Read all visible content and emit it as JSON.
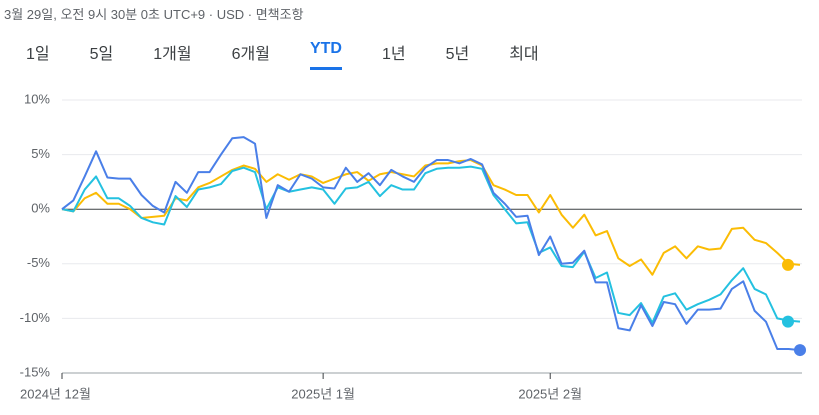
{
  "header": {
    "timestamp": "3월 29일, 오전 9시 30분 0초 UTC+9 · USD · 면책조항",
    "tabs": [
      "1일",
      "5일",
      "1개월",
      "6개월",
      "YTD",
      "1년",
      "5년",
      "최대"
    ],
    "selected_tab": 4
  },
  "chart_data": {
    "type": "line",
    "categories": [
      "2024년 12월",
      null,
      null,
      null,
      null,
      null,
      null,
      null,
      null,
      null,
      null,
      null,
      null,
      null,
      null,
      null,
      null,
      null,
      null,
      null,
      null,
      null,
      null,
      "2025년 1월",
      null,
      null,
      null,
      null,
      null,
      null,
      null,
      null,
      null,
      null,
      null,
      null,
      null,
      null,
      null,
      null,
      null,
      null,
      null,
      "2025년 2월",
      null,
      null,
      null,
      null,
      null,
      null,
      null,
      null,
      null,
      null,
      null,
      null,
      null,
      null,
      null,
      null,
      null,
      null,
      null,
      null,
      null,
      null
    ],
    "ylim": [
      -15,
      10
    ],
    "yticks": [
      {
        "value": 10,
        "label": "10%"
      },
      {
        "value": 5,
        "label": "5%"
      },
      {
        "value": 0,
        "label": "0%"
      },
      {
        "value": -5,
        "label": "-5%"
      },
      {
        "value": -10,
        "label": "-10%"
      },
      {
        "value": -15,
        "label": "-15%"
      }
    ],
    "grid": true,
    "series": [
      {
        "color": "#fbbc04",
        "values": [
          0,
          -0.2,
          1,
          1.5,
          0.5,
          0.5,
          0,
          -0.8,
          -0.7,
          -0.6,
          1,
          0.8,
          2,
          2.4,
          3,
          3.6,
          4,
          3.7,
          2.5,
          3.2,
          2.7,
          3.2,
          3,
          2.4,
          2.8,
          3.2,
          3.4,
          2.6,
          3.2,
          3.4,
          3.2,
          3,
          4,
          4.2,
          4.2,
          4.4,
          4.5,
          4,
          2.2,
          1.8,
          1.3,
          1.3,
          -0.3,
          1.3,
          -0.5,
          -1.7,
          -0.5,
          -2.4,
          -2,
          -4.5,
          -5.2,
          -4.6,
          -6,
          -4,
          -3.4,
          -4.5,
          -3.4,
          -3.7,
          -3.6,
          -1.8,
          -1.7,
          -2.8,
          -3.1,
          -4,
          -5,
          -5.1
        ]
      },
      {
        "color": "#24c1e0",
        "values": [
          0,
          -0.2,
          1.8,
          3,
          1,
          1,
          0.3,
          -0.8,
          -1.2,
          -1.4,
          1.2,
          0.2,
          1.8,
          2,
          2.3,
          3.5,
          3.8,
          3.4,
          0,
          2,
          1.6,
          1.8,
          2,
          1.8,
          0.5,
          1.9,
          2,
          2.5,
          1.2,
          2.2,
          1.8,
          1.8,
          3.3,
          3.7,
          3.8,
          3.8,
          3.9,
          3.7,
          1.3,
          0,
          -1.3,
          -1.2,
          -4,
          -3.5,
          -5.2,
          -5.3,
          -3.9,
          -6.3,
          -5.8,
          -9.5,
          -9.7,
          -8.6,
          -10.4,
          -8,
          -7.7,
          -9.2,
          -8.7,
          -8.3,
          -7.8,
          -6.5,
          -5.4,
          -7.3,
          -7.8,
          -10,
          -10.2,
          -10.3
        ]
      },
      {
        "color": "#4a7fe8",
        "values": [
          0,
          0.8,
          3,
          5.3,
          2.9,
          2.8,
          2.8,
          1.3,
          0.3,
          -0.3,
          2.5,
          1.5,
          3.4,
          3.4,
          5,
          6.5,
          6.6,
          6,
          -0.8,
          2.2,
          1.6,
          3.2,
          2.8,
          2,
          1.9,
          3.8,
          2.5,
          3.3,
          2.2,
          3.6,
          3,
          2.5,
          3.8,
          4.5,
          4.5,
          4.2,
          4.6,
          4.1,
          1.5,
          0.5,
          -0.7,
          -0.6,
          -4.2,
          -2.5,
          -5,
          -4.9,
          -3.8,
          -6.7,
          -6.7,
          -10.9,
          -11.1,
          -8.8,
          -10.7,
          -8.5,
          -8.7,
          -10.5,
          -9.2,
          -9.2,
          -9.1,
          -7.3,
          -6.6,
          -9.3,
          -10.3,
          -12.8,
          -12.8,
          -12.9
        ]
      }
    ]
  }
}
